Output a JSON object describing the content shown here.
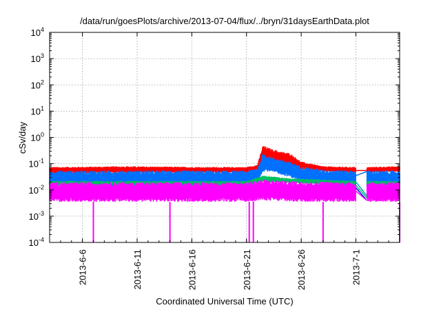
{
  "chart_data": {
    "type": "line",
    "title": "/data/run/goesPlots/archive/2013-07-04/flux/../bryn/31daysEarthData.plot",
    "xlabel": "Coordinated Universal Time (UTC)",
    "ylabel": "cSv/day",
    "yscale": "log",
    "ylim": [
      0.0001,
      10000
    ],
    "y_ticks": [
      {
        "value": 0.0001,
        "base": "10",
        "exp": "-4"
      },
      {
        "value": 0.001,
        "base": "10",
        "exp": "-3"
      },
      {
        "value": 0.01,
        "base": "10",
        "exp": "-2"
      },
      {
        "value": 0.1,
        "base": "10",
        "exp": "-1"
      },
      {
        "value": 1,
        "base": "10",
        "exp": "0"
      },
      {
        "value": 10,
        "base": "10",
        "exp": "1"
      },
      {
        "value": 100,
        "base": "10",
        "exp": "2"
      },
      {
        "value": 1000,
        "base": "10",
        "exp": "3"
      },
      {
        "value": 10000,
        "base": "10",
        "exp": "4"
      }
    ],
    "xlim": [
      "2013-06-03",
      "2013-07-05"
    ],
    "x_ticks": [
      "2013-6-6",
      "2013-6-11",
      "2013-6-16",
      "2013-6-21",
      "2013-6-26",
      "2013-7-1"
    ],
    "grid": true,
    "data_gap": [
      "2013-07-01",
      "2013-07-02"
    ],
    "series": [
      {
        "color": "#ff0000",
        "envelope": {
          "x": [
            "2013-06-03",
            "2013-06-10",
            "2013-06-17",
            "2013-06-21",
            "2013-06-22",
            "2013-06-22T12",
            "2013-06-23",
            "2013-06-24",
            "2013-06-25",
            "2013-06-26",
            "2013-06-28",
            "2013-07-01",
            "2013-07-02",
            "2013-07-05"
          ],
          "max": [
            0.075,
            0.08,
            0.075,
            0.075,
            0.09,
            0.5,
            0.4,
            0.3,
            0.25,
            0.12,
            0.08,
            0.075,
            0.075,
            0.08
          ],
          "min": [
            0.04,
            0.045,
            0.045,
            0.045,
            0.06,
            0.15,
            0.13,
            0.1,
            0.09,
            0.06,
            0.05,
            0.045,
            0.045,
            0.05
          ]
        }
      },
      {
        "color": "#0070ff",
        "envelope": {
          "x": [
            "2013-06-03",
            "2013-06-10",
            "2013-06-17",
            "2013-06-21",
            "2013-06-22",
            "2013-06-22T12",
            "2013-06-23",
            "2013-06-24",
            "2013-06-25",
            "2013-06-26",
            "2013-06-28",
            "2013-07-01",
            "2013-07-02",
            "2013-07-05"
          ],
          "max": [
            0.055,
            0.055,
            0.055,
            0.055,
            0.07,
            0.25,
            0.2,
            0.15,
            0.12,
            0.08,
            0.06,
            0.055,
            0.055,
            0.055
          ],
          "min": [
            0.012,
            0.012,
            0.012,
            0.012,
            0.02,
            0.05,
            0.05,
            0.04,
            0.03,
            0.02,
            0.015,
            0.012,
            0.012,
            0.012
          ]
        }
      },
      {
        "color": "#00c060",
        "envelope": {
          "x": [
            "2013-06-03",
            "2013-06-21",
            "2013-06-22T12",
            "2013-06-25",
            "2013-07-01",
            "2013-07-05"
          ],
          "max": [
            0.022,
            0.022,
            0.035,
            0.028,
            0.022,
            0.022
          ],
          "min": [
            0.015,
            0.015,
            0.02,
            0.018,
            0.015,
            0.015
          ]
        }
      },
      {
        "color": "#ff00ff",
        "envelope": {
          "x": [
            "2013-06-03",
            "2013-06-21",
            "2013-06-22T12",
            "2013-06-25",
            "2013-07-01",
            "2013-07-05"
          ],
          "max": [
            0.02,
            0.02,
            0.025,
            0.022,
            0.02,
            0.02
          ],
          "min": [
            0.0035,
            0.0035,
            0.004,
            0.0035,
            0.0035,
            0.0035
          ]
        },
        "dropouts": [
          "2013-06-07",
          "2013-06-14",
          "2013-06-21T06",
          "2013-06-21T15",
          "2013-06-28",
          "2013-07-05"
        ]
      }
    ],
    "gap_lines": [
      {
        "color": "#ff0000",
        "y": [
          0.055,
          0.055
        ]
      },
      {
        "color": "#0070ff",
        "y": [
          0.035,
          0.05
        ]
      },
      {
        "color": "#00c060",
        "y": [
          0.015,
          0.005
        ]
      },
      {
        "color": "#0000ff",
        "y": [
          0.012,
          0.004
        ]
      },
      {
        "color": "#ff00ff",
        "y": [
          0.009,
          0.004
        ]
      },
      {
        "color": "#00aaaa",
        "y": [
          0.02,
          0.006
        ]
      }
    ]
  }
}
